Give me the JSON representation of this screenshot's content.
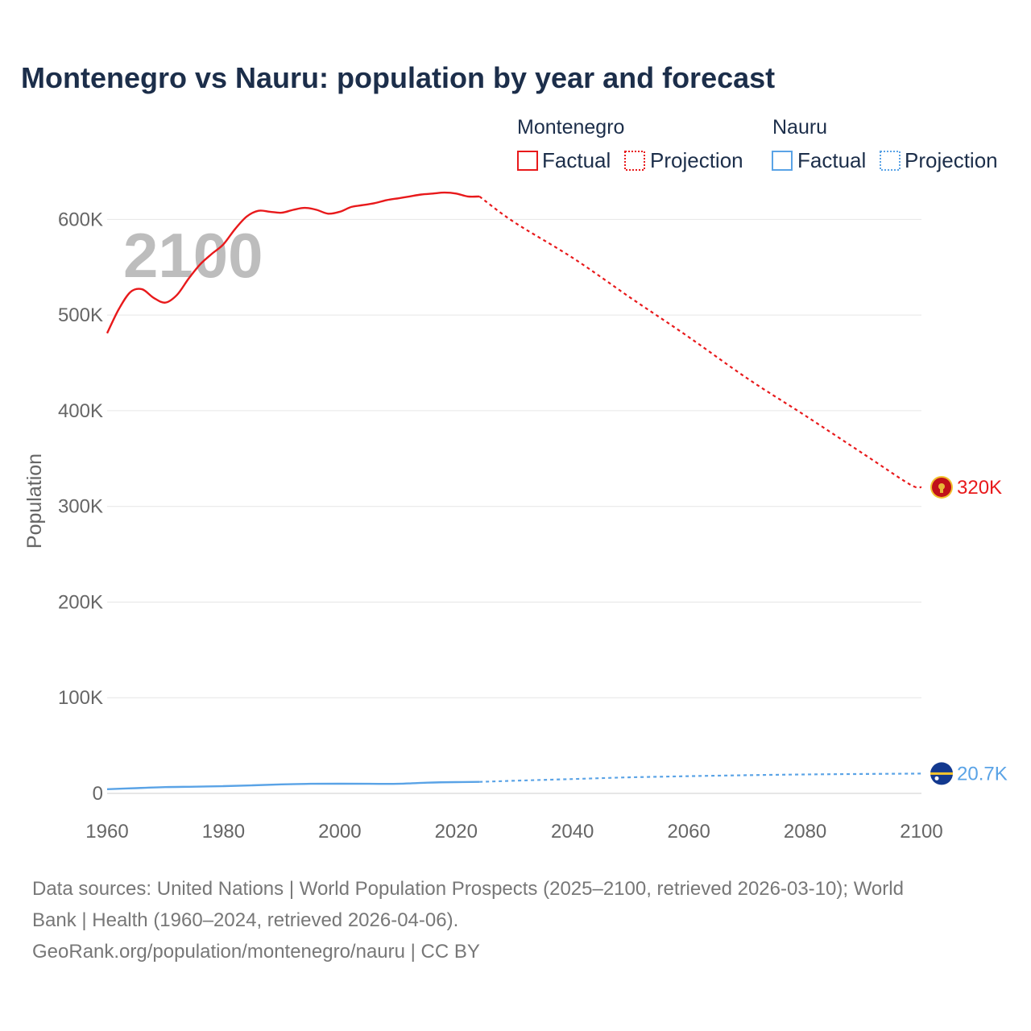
{
  "chart_data": {
    "type": "line",
    "title": "Montenegro vs Nauru: population by year and forecast",
    "ylabel": "Population",
    "xlabel": "",
    "xlim": [
      1960,
      2100
    ],
    "ylim": [
      0,
      650000
    ],
    "x_ticks": [
      1960,
      1980,
      2000,
      2020,
      2040,
      2060,
      2080,
      2100
    ],
    "x_tick_labels": [
      "1960",
      "1980",
      "2000",
      "2020",
      "2040",
      "2060",
      "2080",
      "2100"
    ],
    "y_ticks": [
      0,
      100000,
      200000,
      300000,
      400000,
      500000,
      600000
    ],
    "y_tick_labels": [
      "0",
      "100K",
      "200K",
      "300K",
      "400K",
      "500K",
      "600K"
    ],
    "current_year_label": "2100",
    "legend": {
      "groups": [
        {
          "name": "Montenegro",
          "factual_label": "Factual",
          "projection_label": "Projection",
          "color": "#e8191b"
        },
        {
          "name": "Nauru",
          "factual_label": "Factual",
          "projection_label": "Projection",
          "color": "#5aa3e6"
        }
      ]
    },
    "series": [
      {
        "name": "Montenegro",
        "color": "#e8191b",
        "end_label": "320K",
        "flag_icon": "montenegro-flag-icon",
        "factual": {
          "x": [
            1960,
            1962,
            1964,
            1966,
            1968,
            1970,
            1972,
            1974,
            1976,
            1978,
            1980,
            1982,
            1984,
            1986,
            1988,
            1990,
            1992,
            1994,
            1996,
            1998,
            2000,
            2002,
            2004,
            2006,
            2008,
            2010,
            2012,
            2014,
            2016,
            2018,
            2020,
            2022,
            2024
          ],
          "y": [
            481000,
            506000,
            524000,
            527000,
            518000,
            513000,
            521000,
            538000,
            553000,
            564000,
            574000,
            590000,
            603000,
            609000,
            608000,
            607000,
            610000,
            612000,
            610000,
            606000,
            608000,
            613000,
            615000,
            617000,
            620000,
            622000,
            624000,
            626000,
            627000,
            628000,
            627000,
            624000,
            624000
          ]
        },
        "projection": {
          "x": [
            2024,
            2030,
            2040,
            2050,
            2060,
            2070,
            2080,
            2090,
            2098,
            2100
          ],
          "y": [
            624000,
            597000,
            560000,
            518000,
            477000,
            434000,
            395000,
            355000,
            323000,
            320000
          ]
        }
      },
      {
        "name": "Nauru",
        "color": "#5aa3e6",
        "end_label": "20.7K",
        "flag_icon": "nauru-flag-icon",
        "factual": {
          "x": [
            1960,
            1965,
            1970,
            1975,
            1980,
            1985,
            1990,
            1995,
            2000,
            2005,
            2010,
            2015,
            2020,
            2024
          ],
          "y": [
            4400,
            5500,
            6600,
            7000,
            7600,
            8400,
            9400,
            10000,
            10100,
            10000,
            10000,
            11200,
            11800,
            12000
          ]
        },
        "projection": {
          "x": [
            2024,
            2030,
            2040,
            2050,
            2060,
            2070,
            2080,
            2090,
            2100
          ],
          "y": [
            12000,
            13200,
            15000,
            16800,
            18000,
            19000,
            19800,
            20300,
            20700
          ]
        }
      }
    ]
  },
  "source": {
    "line1": "Data sources: United Nations | World Population Prospects (2025–2100, retrieved 2026-03-10); World",
    "line2": "Bank | Health (1960–2024, retrieved 2026-04-06).",
    "line3": "GeoRank.org/population/montenegro/nauru | CC BY"
  }
}
